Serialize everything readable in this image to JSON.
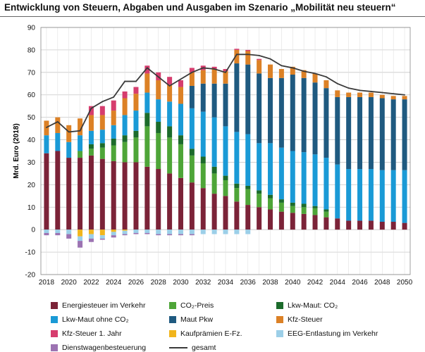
{
  "title": "Entwicklung von Steuern, Abgaben und Ausgaben im Szenario „Mobilität neu steuern“",
  "colors": {
    "energie": "#7b2338",
    "co2preis": "#4ea538",
    "lkwco2": "#1c6b2b",
    "lkwohne": "#1a9ad6",
    "mautpkw": "#1f5a80",
    "kfzsteuer": "#dc8126",
    "kfz1jahr": "#d63d6e",
    "kaufpraemien": "#f1b51c",
    "eeg": "#9ccfe8",
    "dienstwagen": "#9c73b2",
    "gesamt": "#3a3a3a"
  },
  "chart_data": {
    "type": "bar",
    "stacked": true,
    "ylabel": "Mrd. Euro (2018)",
    "ylim": [
      -20,
      90
    ],
    "yticks": [
      -20,
      -10,
      0,
      10,
      20,
      30,
      40,
      50,
      60,
      70,
      80,
      90
    ],
    "grid": true,
    "legend_position": "bottom",
    "x": [
      2018,
      2019,
      2020,
      2021,
      2022,
      2023,
      2024,
      2025,
      2026,
      2027,
      2028,
      2029,
      2030,
      2031,
      2032,
      2033,
      2034,
      2035,
      2036,
      2037,
      2038,
      2039,
      2040,
      2041,
      2042,
      2043,
      2044,
      2045,
      2046,
      2047,
      2048,
      2049,
      2050
    ],
    "xtick_labels": [
      "2018",
      "2020",
      "2022",
      "2024",
      "2026",
      "2028",
      "2030",
      "2032",
      "2034",
      "2036",
      "2038",
      "2040",
      "2042",
      "2044",
      "2046",
      "2048",
      "2050"
    ],
    "series": [
      {
        "name": "Energiesteuer im Verkehr",
        "key": "energie",
        "values": [
          34,
          35,
          32,
          32,
          33,
          31.5,
          30.5,
          30,
          30,
          28,
          27,
          25,
          23,
          21,
          18.5,
          16,
          15,
          12.5,
          11,
          10,
          9,
          8,
          7.5,
          7,
          6.5,
          5.5,
          5,
          4,
          4,
          4,
          3.5,
          3.5,
          3
        ]
      },
      {
        "name": "CO₂-Preis",
        "key": "co2preis",
        "values": [
          0,
          0,
          0,
          3,
          3,
          5,
          7,
          9,
          11,
          18,
          16,
          16,
          15,
          12,
          11,
          9,
          7,
          6,
          7,
          6,
          5,
          4,
          3,
          3,
          3,
          2.5,
          0,
          0,
          0,
          0,
          0,
          0,
          0
        ]
      },
      {
        "name": "Lkw-Maut: CO₂",
        "key": "lkwco2",
        "values": [
          0,
          0,
          0,
          0,
          2,
          2,
          3,
          3,
          3,
          6,
          5,
          5,
          4,
          3,
          3,
          3,
          2,
          2,
          1.5,
          1.5,
          1.5,
          1.5,
          1.5,
          1.5,
          1,
          1,
          0,
          0,
          0,
          0,
          0,
          0,
          0
        ]
      },
      {
        "name": "Lkw-Maut ohne CO₂",
        "key": "lkwohne",
        "values": [
          8,
          8,
          7,
          7,
          6,
          6,
          6,
          9,
          9,
          9,
          10,
          11,
          14,
          18,
          20,
          22,
          22,
          23,
          23,
          21,
          23,
          23,
          23,
          23,
          23,
          23,
          24,
          23,
          23,
          23,
          23,
          23,
          23.5
        ]
      },
      {
        "name": "Maut Pkw",
        "key": "mautpkw",
        "values": [
          0,
          0,
          0,
          0,
          0,
          0,
          0,
          0,
          0,
          0,
          0,
          0,
          0,
          10,
          12.5,
          15,
          19,
          30.5,
          31,
          31,
          29,
          31,
          34,
          33,
          32,
          31,
          30,
          32,
          32,
          32,
          32,
          31.5,
          31.5
        ]
      },
      {
        "name": "Kfz-Steuer",
        "key": "kfzsteuer",
        "values": [
          6.5,
          7,
          7.5,
          7.5,
          7,
          6.5,
          6.5,
          7.5,
          7.5,
          8.5,
          8.5,
          7.5,
          7.5,
          6,
          6,
          6.5,
          5.5,
          6,
          6,
          6,
          6,
          4,
          3.5,
          3.5,
          4,
          3.5,
          3,
          2,
          2,
          2,
          1.5,
          1.5,
          1.5
        ]
      },
      {
        "name": "Kfz-Steuer 1. Jahr",
        "key": "kfz1jahr",
        "values": [
          0,
          0,
          0,
          0,
          4,
          4,
          4.5,
          3,
          3,
          3.5,
          3.5,
          3.5,
          3,
          2,
          2,
          1,
          1,
          0.5,
          0.5,
          0.5,
          0,
          0,
          0,
          0,
          0,
          0,
          0,
          0,
          0,
          0,
          0,
          0,
          0
        ]
      },
      {
        "name": "Kaufprämien E-Fz.",
        "key": "kaufpraemien",
        "values": [
          0,
          0,
          0,
          -3,
          -2,
          -2.5,
          -1,
          -0.5,
          0,
          0,
          0,
          0,
          0,
          0,
          0,
          0,
          0,
          0,
          0,
          0,
          0,
          0,
          0,
          0,
          0,
          0,
          0,
          0,
          0,
          0,
          0,
          0,
          0
        ]
      },
      {
        "name": "EEG-Entlastung im Verkehr",
        "key": "eeg",
        "values": [
          -1.5,
          -1.5,
          -2,
          -2,
          -2,
          -1.5,
          -1.5,
          -1.5,
          -1.5,
          -1.5,
          -2,
          -2,
          -2,
          -2,
          -2,
          -2,
          -2,
          -2,
          -2,
          0,
          0,
          0,
          0,
          0,
          0,
          0,
          0,
          0,
          0,
          0,
          0,
          0,
          0
        ]
      },
      {
        "name": "Dienstwagenbesteuerung",
        "key": "dienstwagen",
        "values": [
          -1,
          -1,
          -2,
          -3,
          -1.5,
          -0.5,
          -1,
          -0.5,
          -0.5,
          -0.5,
          -0.5,
          -0.5,
          -0.5,
          -0.5,
          0,
          0,
          0,
          0,
          0,
          0,
          0,
          0,
          0,
          0,
          0,
          0,
          0,
          0,
          0,
          0,
          0,
          0,
          0
        ]
      }
    ],
    "line": {
      "name": "gesamt",
      "values": [
        45.5,
        48,
        43.5,
        44,
        54,
        57,
        59,
        66,
        66,
        72,
        68,
        64,
        67,
        70,
        72,
        71.5,
        70,
        78,
        78,
        77.5,
        76,
        73,
        72,
        70.5,
        69.5,
        68,
        65,
        63,
        62,
        61.5,
        61,
        60.5,
        60
      ]
    }
  },
  "legend": [
    {
      "label": "Energiesteuer im Verkehr",
      "key": "energie"
    },
    {
      "label": "CO₂-Preis",
      "key": "co2preis"
    },
    {
      "label": "Lkw-Maut: CO₂",
      "key": "lkwco2"
    },
    {
      "label": "Lkw-Maut ohne CO₂",
      "key": "lkwohne"
    },
    {
      "label": "Maut Pkw",
      "key": "mautpkw"
    },
    {
      "label": "Kfz-Steuer",
      "key": "kfzsteuer"
    },
    {
      "label": "Kfz-Steuer 1. Jahr",
      "key": "kfz1jahr"
    },
    {
      "label": "Kaufprämien E-Fz.",
      "key": "kaufpraemien"
    },
    {
      "label": "EEG-Entlastung im Verkehr",
      "key": "eeg"
    },
    {
      "label": "Dienstwagenbesteuerung",
      "key": "dienstwagen"
    },
    {
      "label": "gesamt",
      "key": "gesamt",
      "line": true
    }
  ]
}
